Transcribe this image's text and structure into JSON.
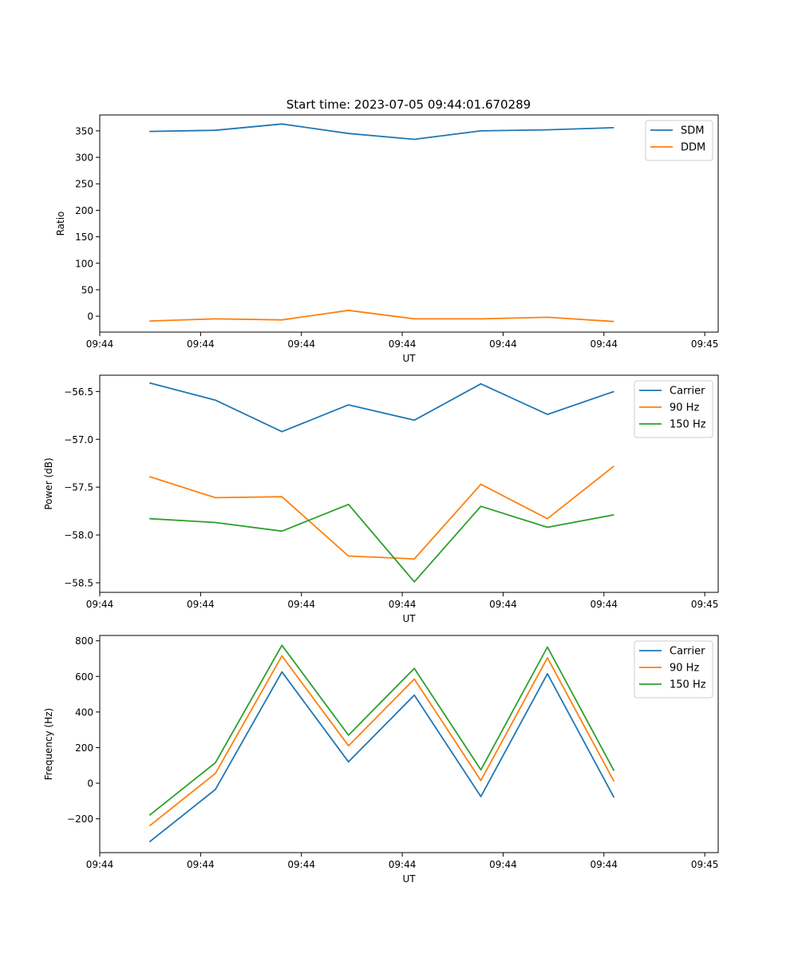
{
  "title": "Start time: 2023-07-05 09:44:01.670289",
  "colors": {
    "blue": "#1f77b4",
    "orange": "#ff7f0e",
    "green": "#2ca02c"
  },
  "chart_data": [
    {
      "type": "line",
      "xlabel": "UT",
      "ylabel": "Ratio",
      "xlim": [
        0,
        9.2
      ],
      "ylim": [
        -30,
        380
      ],
      "xticks": [
        0.0,
        1.5,
        3.0,
        4.5,
        6.0,
        7.5,
        9.0
      ],
      "xtick_labels": [
        "09:44",
        "09:44",
        "09:44",
        "09:44",
        "09:44",
        "09:44",
        "09:45"
      ],
      "yticks": [
        0,
        50,
        100,
        150,
        200,
        250,
        300,
        350
      ],
      "ytick_labels": [
        "0",
        "50",
        "100",
        "150",
        "200",
        "250",
        "300",
        "350"
      ],
      "legend_position": "top-right",
      "x": [
        0.74,
        1.72,
        2.71,
        3.7,
        4.68,
        5.67,
        6.66,
        7.65
      ],
      "series": [
        {
          "name": "SDM",
          "color": "#1f77b4",
          "values": [
            349,
            351,
            363,
            345,
            334,
            350,
            352,
            356
          ]
        },
        {
          "name": "DDM",
          "color": "#ff7f0e",
          "values": [
            -9,
            -5,
            -7,
            11,
            -5,
            -5,
            -2,
            -10
          ]
        }
      ]
    },
    {
      "type": "line",
      "xlabel": "UT",
      "ylabel": "Power (dB)",
      "xlim": [
        0,
        9.2
      ],
      "ylim": [
        -58.6,
        -56.33
      ],
      "xticks": [
        0.0,
        1.5,
        3.0,
        4.5,
        6.0,
        7.5,
        9.0
      ],
      "xtick_labels": [
        "09:44",
        "09:44",
        "09:44",
        "09:44",
        "09:44",
        "09:44",
        "09:45"
      ],
      "yticks": [
        -58.5,
        -58.0,
        -57.5,
        -57.0,
        -56.5
      ],
      "ytick_labels": [
        "−58.5",
        "−58.0",
        "−57.5",
        "−57.0",
        "−56.5"
      ],
      "legend_position": "top-right",
      "x": [
        0.74,
        1.72,
        2.71,
        3.7,
        4.68,
        5.67,
        6.66,
        7.65
      ],
      "series": [
        {
          "name": "Carrier",
          "color": "#1f77b4",
          "values": [
            -56.41,
            -56.59,
            -56.92,
            -56.64,
            -56.8,
            -56.42,
            -56.74,
            -56.5
          ]
        },
        {
          "name": "90 Hz",
          "color": "#ff7f0e",
          "values": [
            -57.39,
            -57.61,
            -57.6,
            -58.22,
            -58.25,
            -57.47,
            -57.83,
            -57.28
          ]
        },
        {
          "name": "150 Hz",
          "color": "#2ca02c",
          "values": [
            -57.83,
            -57.87,
            -57.96,
            -57.68,
            -58.49,
            -57.7,
            -57.92,
            -57.79
          ]
        }
      ]
    },
    {
      "type": "line",
      "xlabel": "UT",
      "ylabel": "Frequency (Hz)",
      "xlim": [
        0,
        9.2
      ],
      "ylim": [
        -390,
        830
      ],
      "xticks": [
        0.0,
        1.5,
        3.0,
        4.5,
        6.0,
        7.5,
        9.0
      ],
      "xtick_labels": [
        "09:44",
        "09:44",
        "09:44",
        "09:44",
        "09:44",
        "09:44",
        "09:45"
      ],
      "yticks": [
        -200,
        0,
        200,
        400,
        600,
        800
      ],
      "ytick_labels": [
        "−200",
        "0",
        "200",
        "400",
        "600",
        "800"
      ],
      "legend_position": "top-right",
      "x": [
        0.74,
        1.72,
        2.71,
        3.7,
        4.68,
        5.67,
        6.66,
        7.65
      ],
      "series": [
        {
          "name": "Carrier",
          "color": "#1f77b4",
          "values": [
            -330,
            -35,
            625,
            120,
            495,
            -75,
            615,
            -80
          ]
        },
        {
          "name": "90 Hz",
          "color": "#ff7f0e",
          "values": [
            -240,
            55,
            715,
            210,
            585,
            15,
            705,
            10
          ]
        },
        {
          "name": "150 Hz",
          "color": "#2ca02c",
          "values": [
            -180,
            115,
            775,
            270,
            645,
            75,
            765,
            70
          ]
        }
      ]
    }
  ]
}
